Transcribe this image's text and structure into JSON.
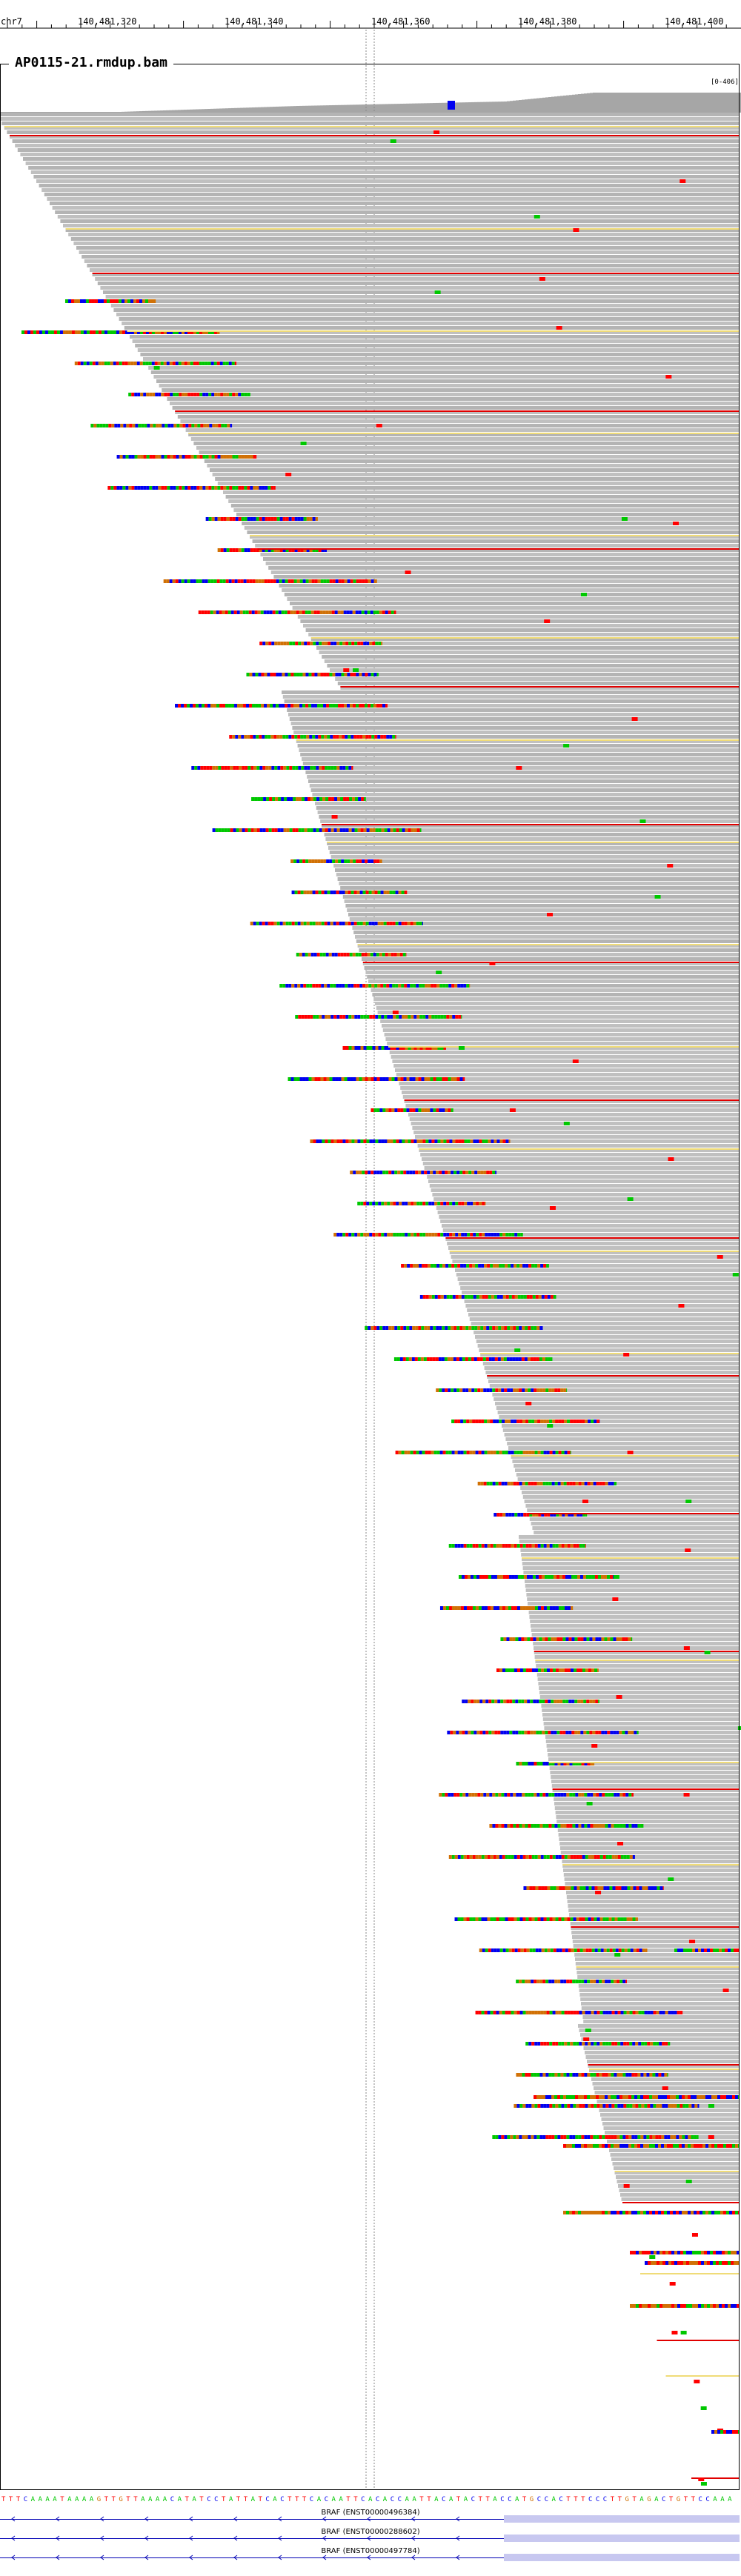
{
  "genome": {
    "chromosome": "chr7",
    "ruler_ticks": [
      "140,481,320",
      "140,481,340",
      "140,481,360",
      "140,481,380",
      "140,481,400"
    ]
  },
  "track": {
    "name": "AP0115-21.rmdup.bam",
    "coverage_range": "[0-406]"
  },
  "reference": {
    "sequence": "TTTCAAAATAAAAGTTGTTAAAACATATCCTATTATCACTTTCACAATTCACACCAATTACATACTTACCATGCCACTTTCCCTTGTAGACTGTTCCAAA"
  },
  "transcripts": [
    {
      "label": "BRAF (ENST00000496384)"
    },
    {
      "label": "BRAF (ENST00000288602)"
    },
    {
      "label": "BRAF (ENST00000497784)"
    }
  ],
  "colors": {
    "read_gray": "#c0c0c0",
    "read_gray_alt": "#b4b4b4",
    "insert_yellow": "#f0dc78",
    "deletion_red": "#e00000",
    "base_A": "#00c800",
    "base_C": "#0000f0",
    "base_G": "#d17105",
    "base_T": "#ff0000",
    "coverage": "#a6a6a6",
    "exon": "#c8c8f0",
    "strand_blue": "#0000b4"
  }
}
